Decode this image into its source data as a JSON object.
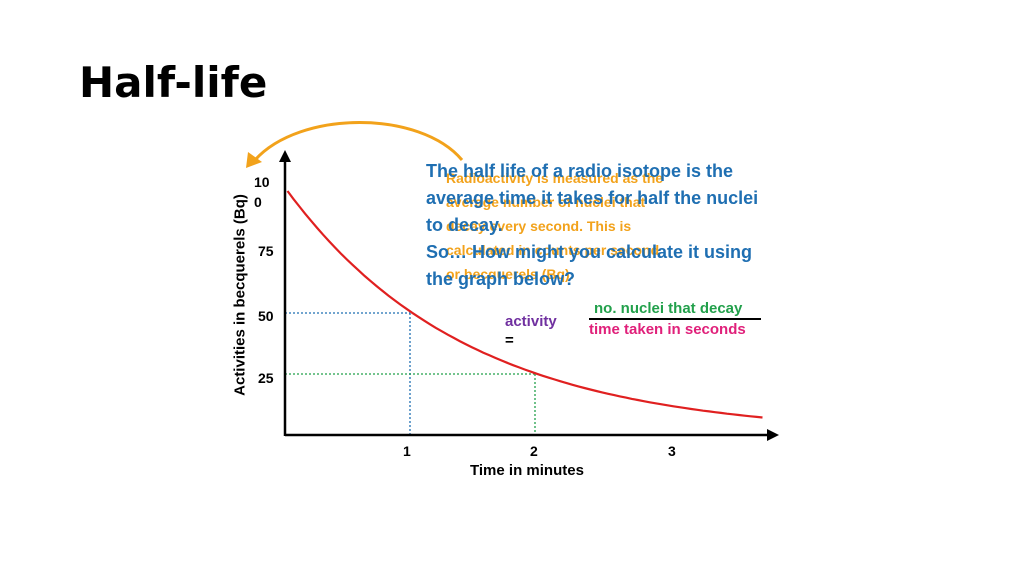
{
  "slide": {
    "title": "Half-life"
  },
  "graph": {
    "y_axis_label": "Activities in becquerels (Bq)",
    "x_axis_label": "Time in minutes",
    "y_ticks": [
      "10\n0",
      "75",
      "50",
      "25"
    ],
    "x_ticks": [
      "1",
      "2",
      "3"
    ]
  },
  "chart_data": {
    "type": "line",
    "title": "",
    "xlabel": "Time in minutes",
    "ylabel": "Activities in becquerels (Bq)",
    "x_ticks": [
      1,
      2,
      3
    ],
    "y_ticks": [
      25,
      50,
      75,
      100
    ],
    "series": [
      {
        "x": [
          0,
          0.5,
          1,
          1.5,
          2,
          2.5,
          3,
          3.8
        ],
        "y": [
          100,
          70.7,
          50,
          35.4,
          25,
          17.7,
          12.5,
          7.2
        ]
      }
    ],
    "guides": [
      {
        "x": 1,
        "y": 50,
        "color": "#1f6fb2"
      },
      {
        "x": 2,
        "y": 25,
        "color": "#22a04b"
      }
    ],
    "colors": {
      "curve": "#e02020",
      "axis": "#000000"
    }
  },
  "orange_text": [
    "Radioactivity is measured as the",
    "average number of nuclei that",
    "decay every second. This is",
    "calculated in counts per second",
    "or becquerels (Bq)."
  ],
  "blue_text": [
    "The half life of a radio isotope is the",
    "average time it takes for half the nuclei",
    "to decay.",
    "So… How might you calculate it using",
    "the graph below?"
  ],
  "formula": {
    "lhs": "activity",
    "equals": "=",
    "numerator": "no. nuclei that decay",
    "denominator": "time taken in seconds"
  },
  "colors": {
    "arrow": "#f2a21b",
    "orange_text": "#f2a21b",
    "blue_text": "#1f6fb2",
    "activity": "#7030a0",
    "numerator": "#22a04b",
    "denominator": "#e0207a"
  }
}
